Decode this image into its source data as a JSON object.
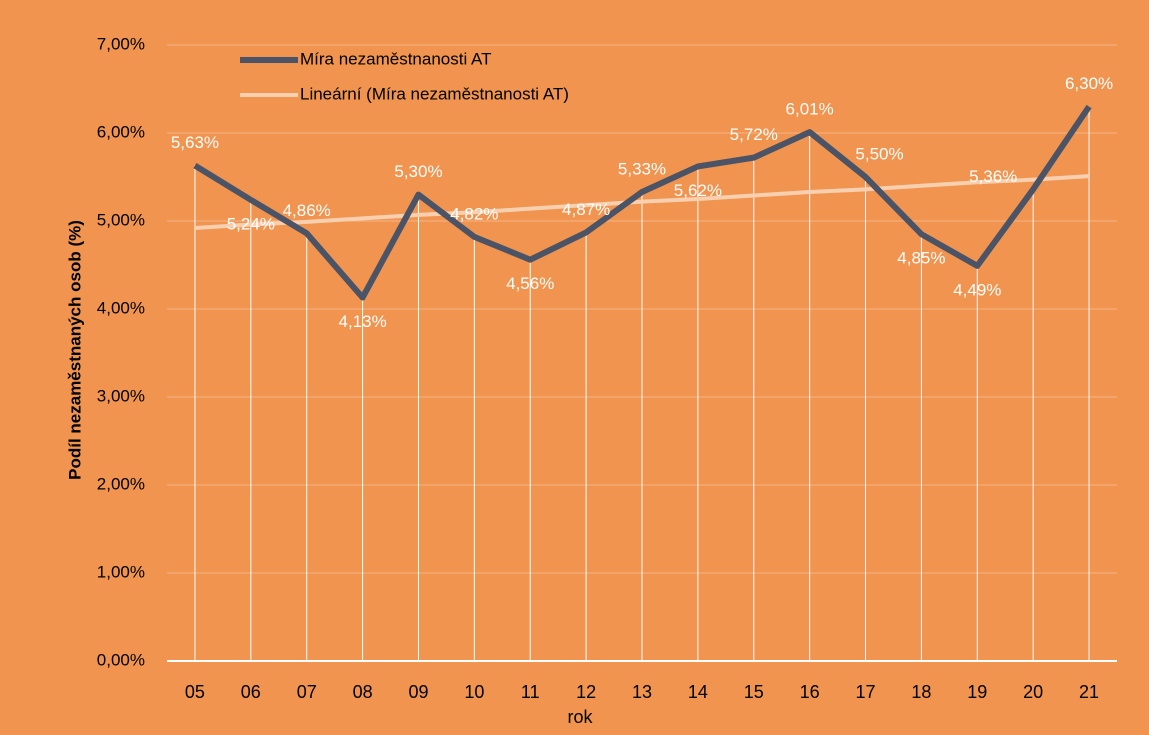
{
  "chart_data": {
    "type": "line",
    "y_label": "Podíl nezaměstnaných osob (%)",
    "x_label": "rok",
    "categories": [
      "05",
      "06",
      "07",
      "08",
      "09",
      "10",
      "11",
      "12",
      "13",
      "14",
      "15",
      "16",
      "17",
      "18",
      "19",
      "20",
      "21"
    ],
    "series": [
      {
        "name": "Míra nezaměstnanosti AT",
        "color": "#4a5466",
        "values": [
          5.63,
          5.24,
          4.86,
          4.13,
          5.3,
          4.82,
          4.56,
          4.87,
          5.33,
          5.62,
          5.72,
          6.01,
          5.5,
          4.85,
          4.49,
          5.36,
          6.3
        ],
        "value_labels": [
          "5,63%",
          "5,24%",
          "4,86%",
          "4,13%",
          "5,30%",
          "4,82%",
          "4,56%",
          "4,87%",
          "5,33%",
          "5,62%",
          "5,72%",
          "6,01%",
          "5,50%",
          "4,85%",
          "4,49%",
          "5,36%",
          "6,30%"
        ]
      },
      {
        "name": "Lineární (Míra nezaměstnanosti AT)",
        "color": "#f8d0b0",
        "values": [
          4.92,
          4.96,
          4.99,
          5.03,
          5.07,
          5.1,
          5.14,
          5.18,
          5.22,
          5.25,
          5.29,
          5.33,
          5.36,
          5.4,
          5.44,
          5.47,
          5.51
        ]
      }
    ],
    "ylim": [
      0,
      7
    ],
    "yticks": [
      {
        "value": 0,
        "label": "0,00%"
      },
      {
        "value": 1,
        "label": "1,00%"
      },
      {
        "value": 2,
        "label": "2,00%"
      },
      {
        "value": 3,
        "label": "3,00%"
      },
      {
        "value": 4,
        "label": "4,00%"
      },
      {
        "value": 5,
        "label": "5,00%"
      },
      {
        "value": 6,
        "label": "6,00%"
      },
      {
        "value": 7,
        "label": "7,00%"
      }
    ],
    "grid": true,
    "background": "#f0944f"
  }
}
